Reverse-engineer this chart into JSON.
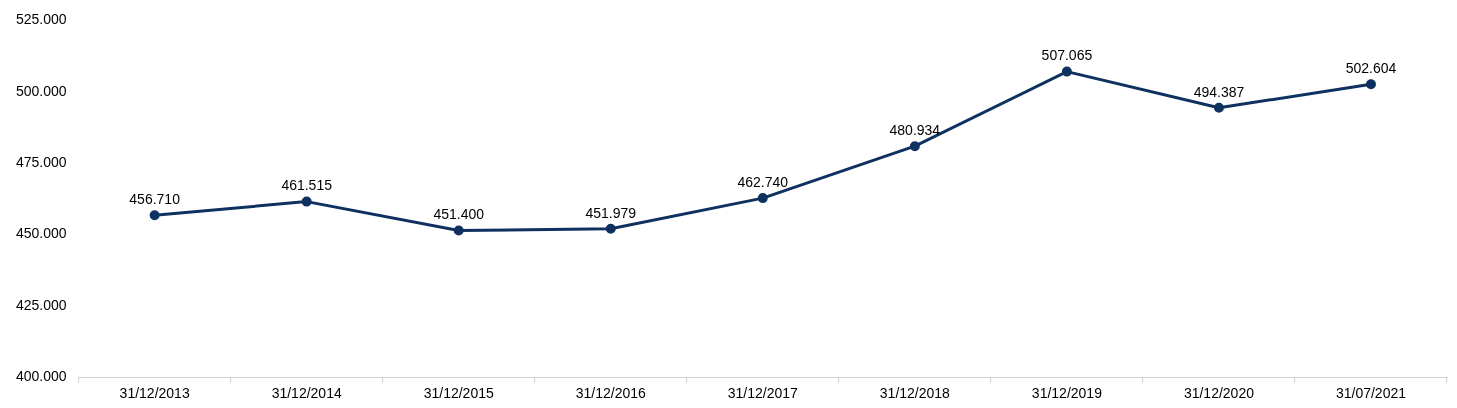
{
  "chart_data": {
    "type": "line",
    "categories": [
      "31/12/2013",
      "31/12/2014",
      "31/12/2015",
      "31/12/2016",
      "31/12/2017",
      "31/12/2018",
      "31/12/2019",
      "31/12/2020",
      "31/07/2021"
    ],
    "series": [
      {
        "color": "#0e3160",
        "values": [
          456710,
          461515,
          451400,
          451979,
          462740,
          480934,
          507065,
          494387,
          502604
        ],
        "value_labels": [
          "456.710",
          "461.515",
          "451.400",
          "451.979",
          "462.740",
          "480.934",
          "507.065",
          "494.387",
          "502.604"
        ]
      }
    ],
    "ylim": [
      400000,
      525000
    ],
    "yticks": [
      {
        "value": 400000,
        "label": "400.000"
      },
      {
        "value": 425000,
        "label": "425.000"
      },
      {
        "value": 450000,
        "label": "450.000"
      },
      {
        "value": 475000,
        "label": "475.000"
      },
      {
        "value": 500000,
        "label": "500.000"
      },
      {
        "value": 525000,
        "label": "525.000"
      }
    ],
    "grid": false,
    "legend": false,
    "marker": "circle",
    "line_style": "solid"
  }
}
